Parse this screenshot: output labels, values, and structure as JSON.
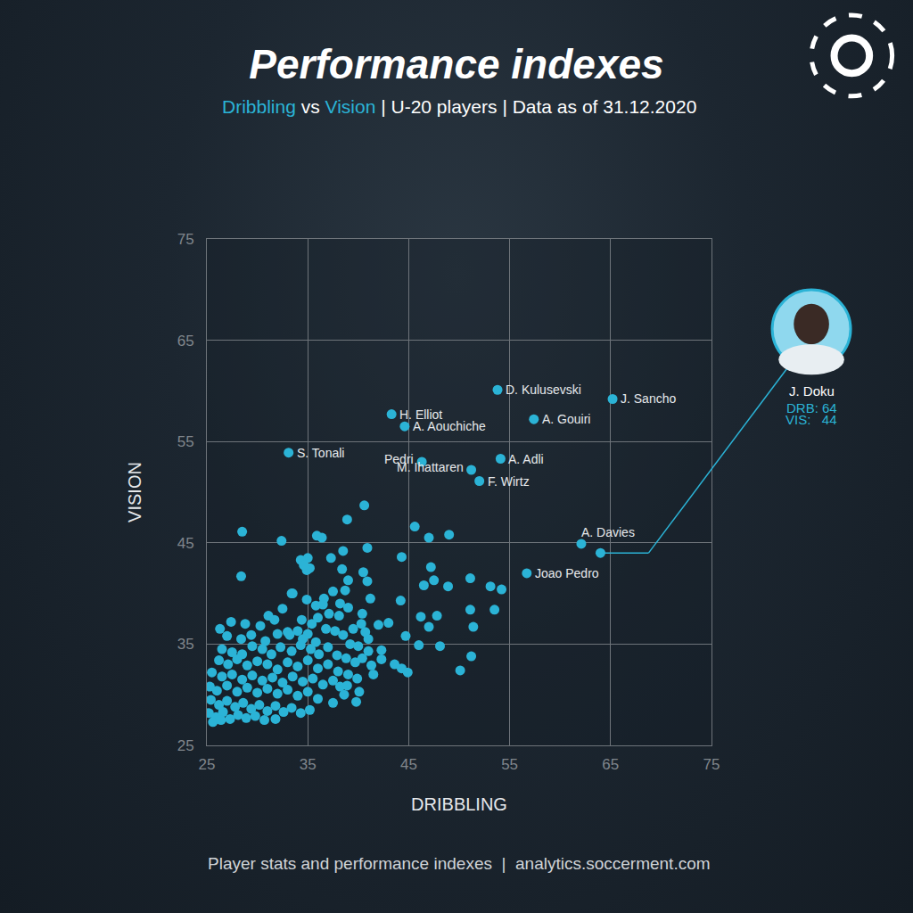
{
  "chart_data": {
    "type": "scatter",
    "title": "Performance indexes",
    "subtitle": "Dribbling vs Vision | U-20 players | Data as of 31.12.2020",
    "x_label": "DRIBBLING",
    "y_label": "VISION",
    "footer": "Player stats and performance indexes  |  analytics.soccerment.com",
    "xlim": [
      25,
      75
    ],
    "ylim": [
      25,
      75
    ],
    "xticks": [
      25,
      35,
      45,
      55,
      65,
      75
    ],
    "yticks": [
      25,
      35,
      45,
      55,
      65,
      75
    ],
    "grid": true,
    "color": "#2bb3d6",
    "series": [
      {
        "x": [
          53.8,
          65.2,
          57.4,
          43.3,
          44.6,
          33.1,
          46.3,
          54.1,
          51.2,
          52.0,
          62.1,
          56.7
        ],
        "y": [
          60.1,
          59.2,
          57.2,
          57.7,
          56.5,
          53.9,
          53.0,
          53.3,
          52.2,
          51.1,
          44.9,
          42.0
        ],
        "labels": [
          "D. Kulusevski",
          "J. Sancho",
          "A. Gouiri",
          "H. Elliot",
          "A. Aouchiche",
          "S. Tonali",
          "Pedri",
          "A. Adli",
          "M. Ihattaren",
          "F. Wirtz",
          "A. Davies",
          "Joao Pedro"
        ]
      },
      {
        "x": [
          40.6,
          38.9,
          28.5,
          32.4,
          35.9,
          36.4,
          45.6,
          47.0,
          49.0,
          40.9,
          38.5,
          37.3,
          44.3,
          47.2,
          28.4,
          51.1,
          47.5,
          46.5,
          53.1,
          54.2,
          48.9,
          44.2,
          51.1,
          53.5,
          46.2,
          47.8,
          43.0,
          42.0,
          47.0,
          51.4,
          44.7,
          41.0,
          46.0,
          48.1,
          51.2,
          42.3,
          43.6,
          44.3,
          44.9,
          50.1,
          40.1,
          38.6,
          37.5,
          39.8,
          35.2,
          34.9,
          35.0,
          38.4,
          39.0,
          38.7,
          37.5,
          36.6,
          38.2,
          33.4,
          32.5,
          31.7,
          31.1,
          27.4,
          28.8,
          29.4,
          30.8,
          34.3,
          34.6,
          40.5,
          40.9,
          41.2,
          40.4,
          33.5,
          34.9,
          35.8,
          36.5,
          37.1,
          39.0,
          38.1,
          40.3,
          39.5,
          40.7,
          34.4,
          35.4,
          36.0,
          33.0,
          34.0,
          35.0,
          36.8,
          37.7,
          38.5,
          39.2,
          40.0,
          41.0,
          42.3,
          32.0,
          30.3,
          28.4,
          27.0,
          26.3,
          26.5,
          27.5,
          28.5,
          29.5,
          30.5,
          31.4,
          32.3,
          33.4,
          34.3,
          35.3,
          36.1,
          37.0,
          37.9,
          38.8,
          39.7,
          40.4,
          41.3,
          26.2,
          27.1,
          28.0,
          29.0,
          30.0,
          31.0,
          32.0,
          33.0,
          34.0,
          35.0,
          36.0,
          37.0,
          38.0,
          39.0,
          25.5,
          26.5,
          27.5,
          28.5,
          29.5,
          30.5,
          31.5,
          32.5,
          33.5,
          34.5,
          35.5,
          36.5,
          37.5,
          38.2,
          25.3,
          26.0,
          27.0,
          28.0,
          29.0,
          30.0,
          31.0,
          32.0,
          33.0,
          34.0,
          35.0,
          36.0,
          25.4,
          26.2,
          27.0,
          27.8,
          28.6,
          29.4,
          30.2,
          31.0,
          31.8,
          32.6,
          33.4,
          34.3,
          35.2,
          25.2,
          25.9,
          26.6,
          27.3,
          28.1,
          28.9,
          29.8,
          30.7,
          31.8,
          25.6,
          26.4,
          33.2,
          34.5,
          39.9,
          38.9,
          41.5,
          35.8
        ],
        "y": [
          48.7,
          47.3,
          46.1,
          45.2,
          45.7,
          45.5,
          46.6,
          45.5,
          45.8,
          44.5,
          44.2,
          43.5,
          43.6,
          42.6,
          41.7,
          41.5,
          41.3,
          40.8,
          40.7,
          40.4,
          40.7,
          39.3,
          38.4,
          38.4,
          37.7,
          37.8,
          37.1,
          36.9,
          36.7,
          36.7,
          35.8,
          35.5,
          34.9,
          34.8,
          33.8,
          33.5,
          33.0,
          32.6,
          32.2,
          32.4,
          30.3,
          30.0,
          29.2,
          29.3,
          42.5,
          42.3,
          43.5,
          42.4,
          41.3,
          40.3,
          40.2,
          39.5,
          39.0,
          40.0,
          38.5,
          37.4,
          37.8,
          37.2,
          37.0,
          35.9,
          35.3,
          43.3,
          42.8,
          42.1,
          41.2,
          39.5,
          38.0,
          40.0,
          39.4,
          38.8,
          38.9,
          38.0,
          38.6,
          37.8,
          37.0,
          36.5,
          36.2,
          37.4,
          37.0,
          37.6,
          36.2,
          36.3,
          36.0,
          36.5,
          36.3,
          35.9,
          35.0,
          34.8,
          34.3,
          34.4,
          36.0,
          36.8,
          35.5,
          35.8,
          36.5,
          34.5,
          34.2,
          34.0,
          34.8,
          34.5,
          34.0,
          34.7,
          34.3,
          34.9,
          34.5,
          34.0,
          34.7,
          33.9,
          33.6,
          33.2,
          33.6,
          32.9,
          33.4,
          33.0,
          33.5,
          32.9,
          33.3,
          33.0,
          32.5,
          33.2,
          32.8,
          33.4,
          32.6,
          33.0,
          32.3,
          32.0,
          32.2,
          31.8,
          32.0,
          31.5,
          31.9,
          31.4,
          31.7,
          31.2,
          31.8,
          31.3,
          31.6,
          31.0,
          31.4,
          30.8,
          30.8,
          30.4,
          30.9,
          30.3,
          30.7,
          30.2,
          30.6,
          30.1,
          30.5,
          29.9,
          30.3,
          29.6,
          29.5,
          29.0,
          29.4,
          28.8,
          29.2,
          28.6,
          29.0,
          28.4,
          28.9,
          28.3,
          28.7,
          28.2,
          28.5,
          28.2,
          27.8,
          28.3,
          27.6,
          28.0,
          27.7,
          27.9,
          27.5,
          27.6,
          27.3,
          27.5,
          35.9,
          35.5,
          31.6,
          30.9,
          32.0,
          35.2
        ]
      }
    ],
    "highlight": {
      "label": "J. Doku",
      "x_label": "DRB: 64",
      "y_label": "VIS:   44",
      "x": 64,
      "y": 44
    }
  }
}
